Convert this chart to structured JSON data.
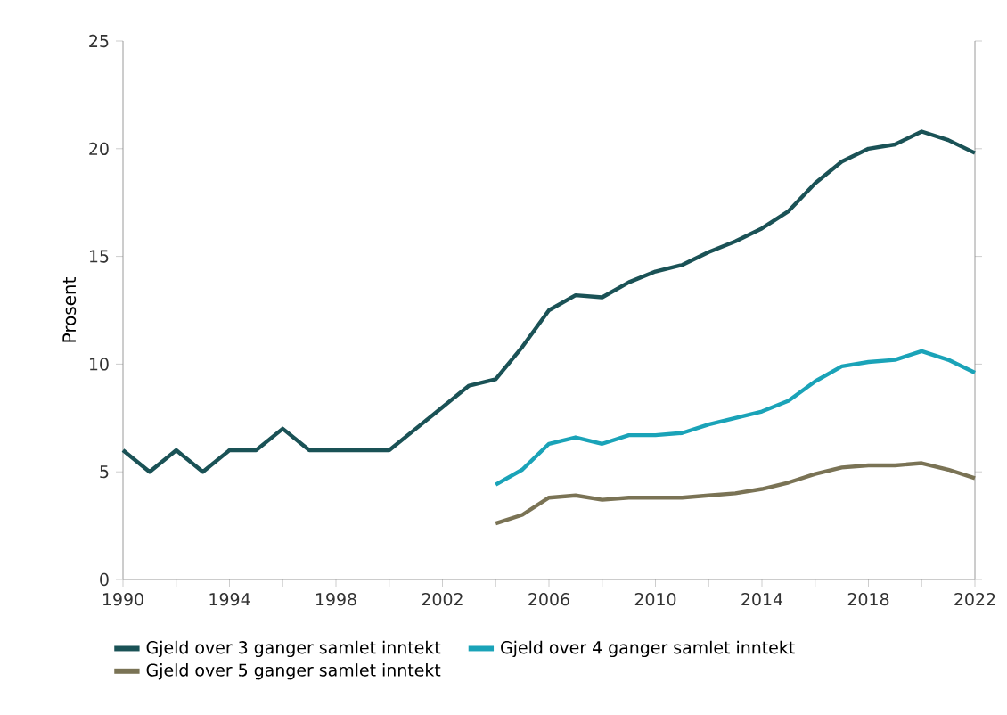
{
  "chart_data": {
    "type": "line",
    "ylabel": "Prosent",
    "xlim": [
      1990,
      2022
    ],
    "ylim": [
      0,
      25
    ],
    "yticks": [
      0,
      5,
      10,
      15,
      20,
      25
    ],
    "xticks": [
      1990,
      {
        "value": 1992,
        "label": null
      },
      1994,
      {
        "value": 1996,
        "label": null
      },
      1998,
      {
        "value": 2000,
        "label": null
      },
      2002,
      {
        "value": 2004,
        "label": null
      },
      2006,
      {
        "value": 2008,
        "label": null
      },
      2010,
      {
        "value": 2012,
        "label": null
      },
      2014,
      {
        "value": 2016,
        "label": null
      },
      2018,
      {
        "value": 2020,
        "label": null
      },
      2022
    ],
    "legend": "bottom",
    "grid": false,
    "series": [
      {
        "name": "Gjeld over 3 ganger samlet inntekt",
        "color": "#1a5256",
        "x": [
          1990,
          1991,
          1992,
          1993,
          1994,
          1995,
          1996,
          1997,
          1998,
          1999,
          2000,
          2001,
          2002,
          2003,
          2004,
          2005,
          2006,
          2007,
          2008,
          2009,
          2010,
          2011,
          2012,
          2013,
          2014,
          2015,
          2016,
          2017,
          2018,
          2019,
          2020,
          2021,
          2022
        ],
        "values": [
          6,
          5,
          6,
          5,
          6,
          6,
          7,
          6,
          6,
          6,
          6,
          7,
          8,
          9,
          9.3,
          10.8,
          12.5,
          13.2,
          13.1,
          13.8,
          14.3,
          14.6,
          15.2,
          15.7,
          16.3,
          17.1,
          18.4,
          19.4,
          20.0,
          20.2,
          20.8,
          20.4,
          19.8
        ]
      },
      {
        "name": "Gjeld over 4 ganger samlet inntekt",
        "color": "#1aa3b8",
        "x": [
          2004,
          2005,
          2006,
          2007,
          2008,
          2009,
          2010,
          2011,
          2012,
          2013,
          2014,
          2015,
          2016,
          2017,
          2018,
          2019,
          2020,
          2021,
          2022
        ],
        "values": [
          4.4,
          5.1,
          6.3,
          6.6,
          6.3,
          6.7,
          6.7,
          6.8,
          7.2,
          7.5,
          7.8,
          8.3,
          9.2,
          9.9,
          10.1,
          10.2,
          10.6,
          10.2,
          9.6
        ]
      },
      {
        "name": "Gjeld over 5 ganger samlet inntekt",
        "color": "#7a7355",
        "x": [
          2004,
          2005,
          2006,
          2007,
          2008,
          2009,
          2010,
          2011,
          2012,
          2013,
          2014,
          2015,
          2016,
          2017,
          2018,
          2019,
          2020,
          2021,
          2022
        ],
        "values": [
          2.6,
          3.0,
          3.8,
          3.9,
          3.7,
          3.8,
          3.8,
          3.8,
          3.9,
          4.0,
          4.2,
          4.5,
          4.9,
          5.2,
          5.3,
          5.3,
          5.4,
          5.1,
          4.7
        ]
      }
    ]
  }
}
